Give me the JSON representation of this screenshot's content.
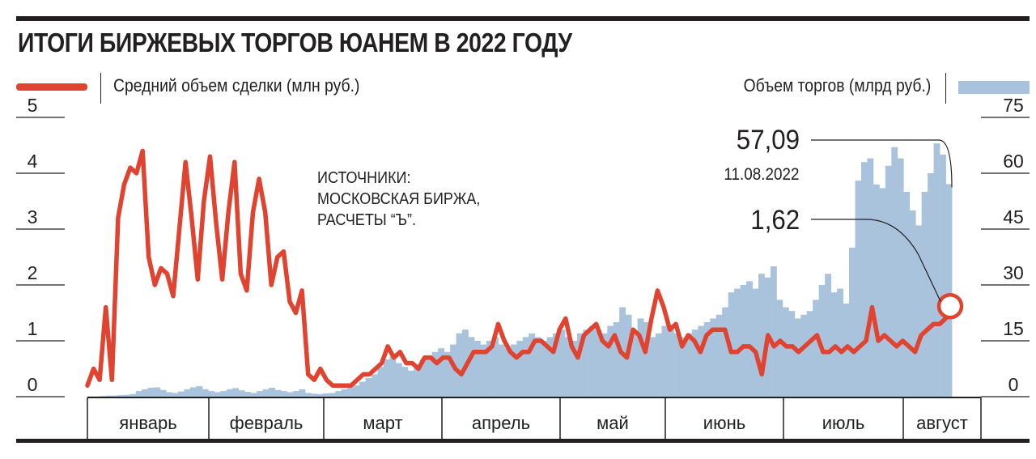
{
  "title": "ИТОГИ БИРЖЕВЫХ ТОРГОВ ЮАНЕМ В 2022 ГОДУ",
  "legend": {
    "left": "Средний объем сделки (млн руб.)",
    "right": "Объем торгов (млрд руб.)"
  },
  "sources_lines": [
    "ИСТОЧНИКИ:",
    "МОСКОВСКАЯ БИРЖА,",
    "РАСЧЕТЫ “Ъ”."
  ],
  "callout": {
    "volume_value": "57,09",
    "date": "11.08.2022",
    "avg_value": "1,62"
  },
  "colors": {
    "line": "#e0432f",
    "bars": "#a9c3dc",
    "text": "#231f20"
  },
  "chart_data": {
    "type": "bar+line",
    "title": "ИТОГИ БИРЖЕВЫХ ТОРГОВ ЮАНЕМ В 2022 ГОДУ",
    "months": [
      "январь",
      "февраль",
      "март",
      "апрель",
      "май",
      "июнь",
      "июль",
      "август"
    ],
    "left_axis": {
      "label": "Средний объем сделки (млн руб.)",
      "ticks": [
        "0",
        "1",
        "2",
        "3",
        "4",
        "5"
      ],
      "range": [
        0,
        5
      ]
    },
    "right_axis": {
      "label": "Объем торгов (млрд руб.)",
      "ticks": [
        "0",
        "15",
        "30",
        "45",
        "60",
        "75"
      ],
      "range": [
        0,
        75
      ]
    },
    "legend_placement": "top",
    "grid": false,
    "series": [
      {
        "name": "Средний объем сделки (млн руб.)",
        "type": "line",
        "axis": "left",
        "values": [
          0.2,
          0.5,
          0.3,
          1.6,
          0.3,
          3.2,
          3.8,
          4.1,
          4.0,
          4.4,
          2.5,
          2.0,
          2.3,
          2.2,
          1.8,
          3.0,
          4.2,
          3.2,
          2.1,
          3.5,
          4.3,
          3.1,
          2.1,
          3.3,
          4.2,
          2.2,
          1.9,
          3.3,
          3.9,
          3.3,
          2.0,
          2.5,
          2.6,
          1.7,
          1.5,
          1.9,
          0.4,
          0.3,
          0.5,
          0.3,
          0.2,
          0.2,
          0.2,
          0.2,
          0.3,
          0.4,
          0.4,
          0.5,
          0.6,
          0.9,
          0.7,
          0.8,
          0.6,
          0.6,
          0.5,
          0.7,
          0.7,
          0.6,
          0.7,
          0.7,
          0.5,
          0.4,
          0.6,
          0.8,
          0.8,
          0.8,
          0.9,
          1.3,
          1.0,
          0.8,
          0.7,
          0.8,
          0.8,
          1.0,
          1.0,
          0.9,
          0.8,
          1.2,
          1.4,
          0.9,
          0.7,
          1.1,
          1.2,
          1.3,
          1.0,
          0.9,
          1.1,
          0.8,
          0.7,
          1.2,
          1.1,
          0.8,
          1.4,
          1.9,
          1.6,
          1.2,
          1.3,
          0.9,
          1.1,
          1.0,
          0.8,
          1.1,
          1.2,
          1.2,
          1.2,
          0.8,
          0.8,
          0.9,
          0.9,
          0.8,
          0.4,
          1.1,
          0.9,
          1.0,
          0.9,
          0.9,
          0.8,
          0.9,
          1.0,
          1.1,
          0.8,
          0.8,
          0.9,
          0.8,
          0.9,
          0.8,
          0.9,
          1.0,
          1.6,
          1.0,
          1.1,
          1.0,
          0.9,
          1.0,
          0.9,
          0.8,
          1.1,
          1.2,
          1.3,
          1.3,
          1.4,
          1.62
        ]
      },
      {
        "name": "Объем торгов (млрд руб.)",
        "type": "bar",
        "axis": "right",
        "values": [
          0.1,
          0.1,
          0.2,
          0.3,
          0.3,
          0.4,
          0.5,
          0.7,
          1.5,
          2.0,
          2.4,
          2.5,
          1.8,
          1.2,
          1.0,
          1.4,
          2.0,
          2.5,
          2.8,
          2.0,
          1.5,
          1.2,
          1.5,
          2.0,
          2.3,
          1.7,
          1.3,
          1.0,
          1.5,
          2.0,
          2.4,
          1.8,
          1.5,
          1.2,
          1.5,
          2.0,
          1.0,
          0.8,
          0.7,
          0.9,
          1.0,
          1.5,
          2.0,
          2.5,
          3.0,
          4.0,
          5.0,
          6.0,
          8.0,
          10.0,
          11.0,
          9.0,
          8.0,
          7.0,
          8.0,
          10.0,
          11.0,
          12.0,
          13.0,
          12.0,
          14.0,
          17.0,
          18.0,
          16.0,
          15.0,
          14.0,
          15.0,
          16.0,
          14.0,
          13.0,
          14.0,
          15.0,
          16.0,
          17.0,
          16.0,
          15.0,
          16.0,
          17.0,
          18.0,
          16.0,
          15.0,
          17.0,
          18.0,
          19.0,
          18.0,
          17.0,
          19.0,
          20.0,
          24.0,
          22.0,
          17.0,
          21.0,
          20.0,
          16.0,
          17.0,
          19.0,
          18.0,
          17.0,
          16.0,
          17.0,
          18.0,
          19.0,
          20.0,
          21.0,
          22.0,
          24.0,
          28.0,
          29.0,
          30.0,
          31.0,
          29.0,
          33.0,
          32.0,
          35.0,
          26.0,
          24.0,
          23.0,
          21.0,
          22.0,
          23.0,
          26.0,
          30.0,
          33.0,
          28.0,
          29.0,
          25.0,
          40.0,
          58.0,
          63.0,
          64.0,
          57.0,
          56.0,
          62.0,
          67.0,
          64.0,
          55.0,
          50.0,
          46.0,
          55.0,
          60.0,
          68.0,
          65.0,
          57.09
        ]
      }
    ],
    "annotations": [
      {
        "text": "57,09",
        "series": "Объем торгов (млрд руб.)",
        "date": "11.08.2022"
      },
      {
        "text": "1,62",
        "series": "Средний объем сделки (млн руб.)",
        "date": "11.08.2022"
      }
    ]
  }
}
